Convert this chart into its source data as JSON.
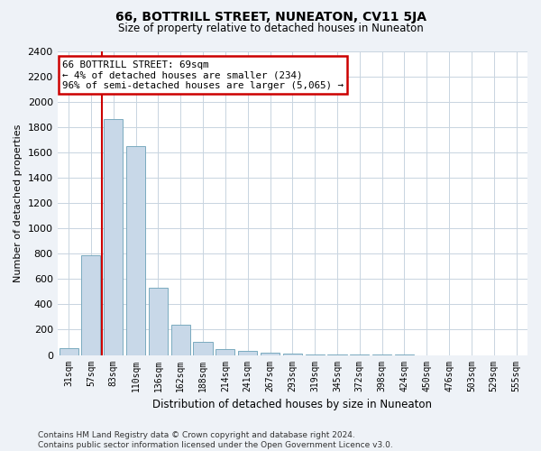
{
  "title": "66, BOTTRILL STREET, NUNEATON, CV11 5JA",
  "subtitle": "Size of property relative to detached houses in Nuneaton",
  "xlabel": "Distribution of detached houses by size in Nuneaton",
  "ylabel": "Number of detached properties",
  "categories": [
    "31sqm",
    "57sqm",
    "83sqm",
    "110sqm",
    "136sqm",
    "162sqm",
    "188sqm",
    "214sqm",
    "241sqm",
    "267sqm",
    "293sqm",
    "319sqm",
    "345sqm",
    "372sqm",
    "398sqm",
    "424sqm",
    "450sqm",
    "476sqm",
    "503sqm",
    "529sqm",
    "555sqm"
  ],
  "values": [
    55,
    790,
    1860,
    1650,
    530,
    240,
    105,
    50,
    30,
    18,
    10,
    5,
    3,
    2,
    1,
    1,
    0,
    0,
    0,
    0,
    0
  ],
  "bar_color": "#c8d8e8",
  "bar_edge_color": "#7aaabf",
  "property_line_color": "#cc0000",
  "property_line_x": 1.5,
  "annotation_text": "66 BOTTRILL STREET: 69sqm\n← 4% of detached houses are smaller (234)\n96% of semi-detached houses are larger (5,065) →",
  "annotation_box_color": "#ffffff",
  "annotation_box_edge_color": "#cc0000",
  "ylim": [
    0,
    2400
  ],
  "yticks": [
    0,
    200,
    400,
    600,
    800,
    1000,
    1200,
    1400,
    1600,
    1800,
    2000,
    2200,
    2400
  ],
  "footnote": "Contains HM Land Registry data © Crown copyright and database right 2024.\nContains public sector information licensed under the Open Government Licence v3.0.",
  "background_color": "#eef2f7",
  "plot_background_color": "#ffffff",
  "grid_color": "#c8d4e0"
}
